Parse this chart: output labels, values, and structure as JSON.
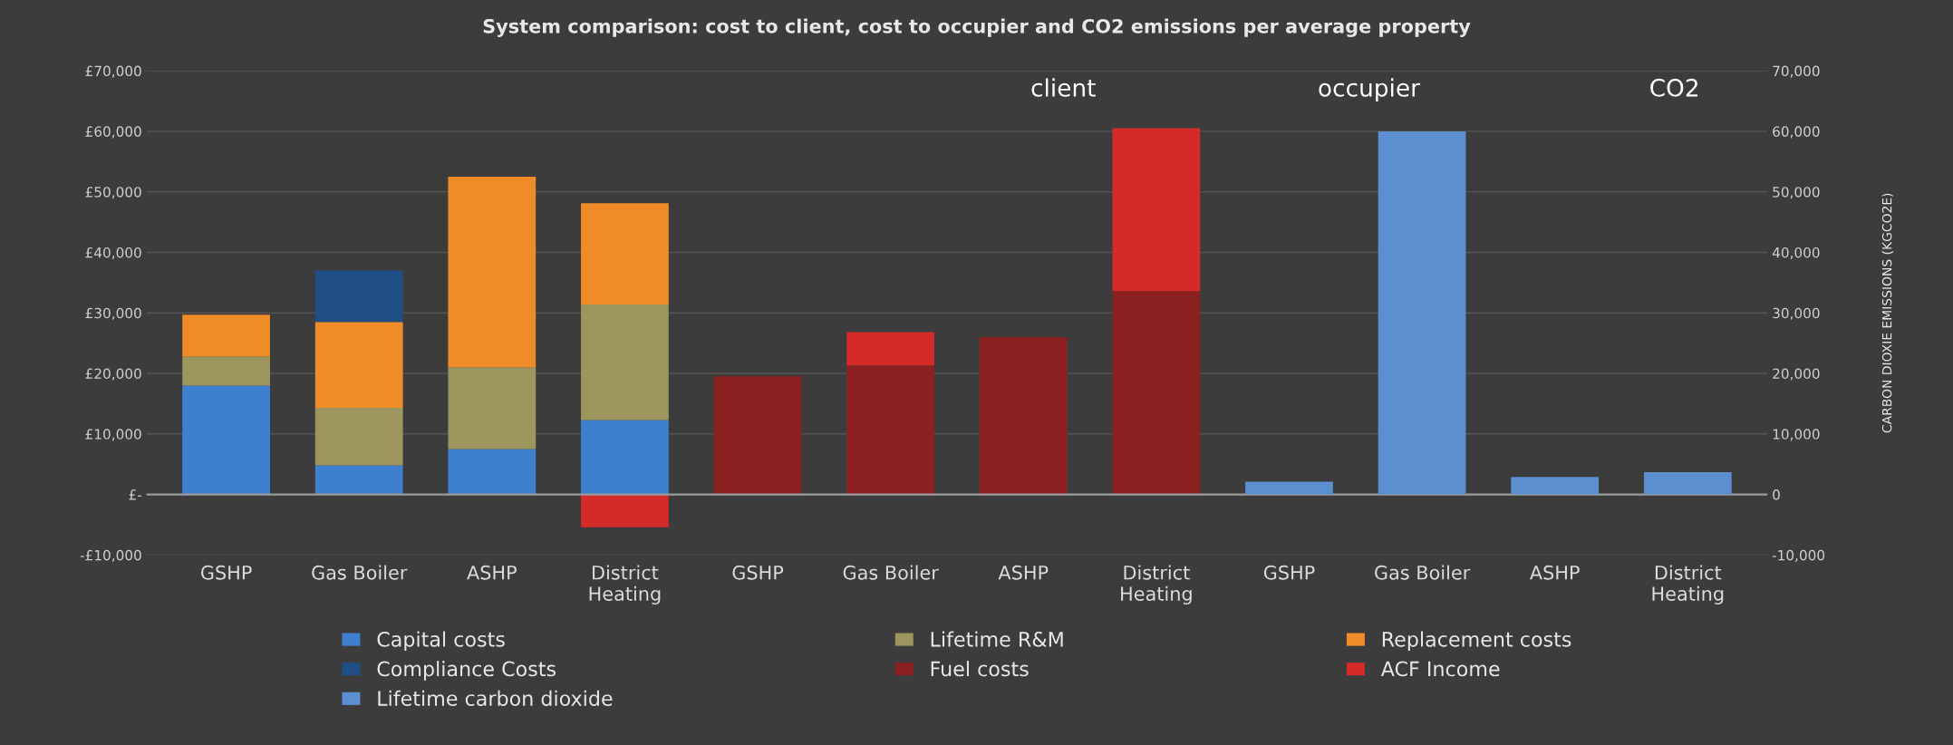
{
  "chart_data": {
    "type": "bar",
    "stacked": true,
    "title": "System comparison: cost to client, cost to occupier and CO2 emissions per average property",
    "y2label": "CARBON DIOXIE EMISSIONS (KGCO2E)",
    "annotations": [
      "client",
      "occupier",
      "CO2"
    ],
    "categories": [
      "GSHP",
      "Gas Boiler",
      "ASHP",
      "District\nHeating",
      "GSHP",
      "Gas Boiler",
      "ASHP",
      "District\nHeating",
      "GSHP",
      "Gas Boiler",
      "ASHP",
      "District\nHeating"
    ],
    "series": [
      {
        "name": "Capital costs",
        "color": "#3f7fcf",
        "values": [
          18000,
          4800,
          7500,
          12300,
          null,
          null,
          null,
          null,
          null,
          null,
          null,
          null
        ]
      },
      {
        "name": "Lifetime R&M",
        "color": "#9c955e",
        "values": [
          4800,
          9500,
          13500,
          19100,
          null,
          null,
          null,
          null,
          null,
          null,
          null,
          null
        ]
      },
      {
        "name": "Replacement costs",
        "color": "#f08c28",
        "values": [
          6900,
          14200,
          31500,
          16700,
          null,
          null,
          null,
          null,
          null,
          null,
          null,
          null
        ]
      },
      {
        "name": "Compliance Costs",
        "color": "#1f4e85",
        "values": [
          null,
          8500,
          null,
          null,
          null,
          null,
          null,
          null,
          null,
          null,
          null,
          null
        ]
      },
      {
        "name": "Fuel costs",
        "color": "#8b2020",
        "values": [
          null,
          null,
          null,
          null,
          19500,
          21300,
          26000,
          33600,
          null,
          null,
          null,
          null
        ]
      },
      {
        "name": "ACF Income",
        "color": "#d42a2a",
        "values": [
          null,
          null,
          null,
          -5400,
          null,
          5500,
          null,
          26900,
          null,
          null,
          null,
          null
        ]
      },
      {
        "name": "Lifetime carbon dioxide",
        "color": "#5b8fd0",
        "axis": "y2",
        "values": [
          null,
          null,
          null,
          null,
          null,
          null,
          null,
          null,
          2100,
          60000,
          2900,
          3700
        ]
      }
    ],
    "ylim": [
      -10000,
      70000
    ],
    "yticks": [
      {
        "value": -10000,
        "label": "-£10,000"
      },
      {
        "value": 0,
        "label": "£-"
      },
      {
        "value": 10000,
        "label": "£10,000"
      },
      {
        "value": 20000,
        "label": "£20,000"
      },
      {
        "value": 30000,
        "label": "£30,000"
      },
      {
        "value": 40000,
        "label": "£40,000"
      },
      {
        "value": 50000,
        "label": "£50,000"
      },
      {
        "value": 60000,
        "label": "£60,000"
      },
      {
        "value": 70000,
        "label": "£70,000"
      }
    ],
    "y2lim": [
      -10000,
      70000
    ],
    "y2ticks": [
      {
        "value": -10000,
        "label": "-10,000"
      },
      0,
      {
        "value": 10000,
        "label": "10,000"
      },
      {
        "value": 20000,
        "label": "20,000"
      },
      {
        "value": 30000,
        "label": "30,000"
      },
      {
        "value": 40000,
        "label": "40,000"
      },
      {
        "value": 50000,
        "label": "50,000"
      },
      {
        "value": 60000,
        "label": "60,000"
      },
      {
        "value": 70000,
        "label": "70,000"
      }
    ],
    "grid": "y",
    "legend": "bottom"
  }
}
